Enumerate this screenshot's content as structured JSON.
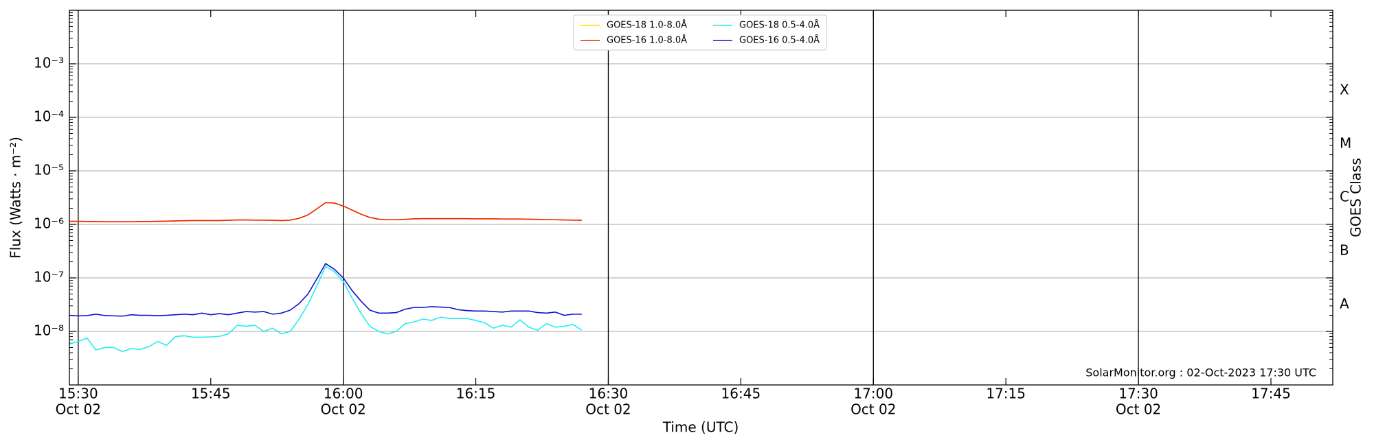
{
  "chart_data": {
    "type": "line",
    "y_label": "Flux (Watts · m⁻²)",
    "x_label": "Time (UTC)",
    "y2_label": "GOES Class",
    "annotation": "SolarMonitor.org : 02-Oct-2023 17:30 UTC",
    "log_y": true,
    "grid": true,
    "legend": "top-center",
    "ylim": [
      1e-09,
      0.01
    ],
    "yticks": [
      {
        "value": 1e-08,
        "label": "10⁻⁸"
      },
      {
        "value": 1e-07,
        "label": "10⁻⁷"
      },
      {
        "value": 1e-06,
        "label": "10⁻⁶"
      },
      {
        "value": 1e-05,
        "label": "10⁻⁵"
      },
      {
        "value": 0.0001,
        "label": "10⁻⁴"
      },
      {
        "value": 0.001,
        "label": "10⁻³"
      }
    ],
    "classes": {
      "labels": [
        "A",
        "B",
        "C",
        "M",
        "X"
      ],
      "lower": [
        1e-08,
        1e-07,
        1e-06,
        1e-05,
        0.0001
      ]
    },
    "xlim": [
      "15:29",
      "17:52"
    ],
    "xticks": [
      {
        "value": "15:30",
        "label": "15:30",
        "date": "Oct 02"
      },
      "15:45",
      {
        "value": "16:00",
        "label": "16:00",
        "date": "Oct 02"
      },
      "16:15",
      {
        "value": "16:30",
        "label": "16:30",
        "date": "Oct 02"
      },
      "16:45",
      {
        "value": "17:00",
        "label": "17:00",
        "date": "Oct 02"
      },
      "17:15",
      {
        "value": "17:30",
        "label": "17:30",
        "date": "Oct 02"
      },
      "17:45"
    ],
    "x": [
      "15:29",
      "15:30",
      "15:31",
      "15:32",
      "15:33",
      "15:34",
      "15:35",
      "15:36",
      "15:37",
      "15:38",
      "15:39",
      "15:40",
      "15:41",
      "15:42",
      "15:43",
      "15:44",
      "15:45",
      "15:46",
      "15:47",
      "15:48",
      "15:49",
      "15:50",
      "15:51",
      "15:52",
      "15:53",
      "15:54",
      "15:55",
      "15:56",
      "15:57",
      "15:58",
      "15:59",
      "16:00",
      "16:01",
      "16:02",
      "16:03",
      "16:04",
      "16:05",
      "16:06",
      "16:07",
      "16:08",
      "16:09",
      "16:10",
      "16:11",
      "16:12",
      "16:13",
      "16:14",
      "16:15",
      "16:16",
      "16:17",
      "16:18",
      "16:19",
      "16:20",
      "16:21",
      "16:22",
      "16:23",
      "16:24",
      "16:25",
      "16:26",
      "16:27"
    ],
    "series": [
      {
        "name": "GOES-18 1.0-8.0Å",
        "color": "#ffd700",
        "values": [
          1.14e-06,
          1.14e-06,
          1.13e-06,
          1.13e-06,
          1.12e-06,
          1.12e-06,
          1.12e-06,
          1.12e-06,
          1.13e-06,
          1.13e-06,
          1.14e-06,
          1.15e-06,
          1.16e-06,
          1.17e-06,
          1.18e-06,
          1.18e-06,
          1.18e-06,
          1.18e-06,
          1.19e-06,
          1.21e-06,
          1.21e-06,
          1.2e-06,
          1.2e-06,
          1.19e-06,
          1.18e-06,
          1.2e-06,
          1.3e-06,
          1.5e-06,
          1.95e-06,
          2.55e-06,
          2.5e-06,
          2.2e-06,
          1.85e-06,
          1.55e-06,
          1.35e-06,
          1.25e-06,
          1.22e-06,
          1.22e-06,
          1.24e-06,
          1.27e-06,
          1.28e-06,
          1.28e-06,
          1.28e-06,
          1.28e-06,
          1.28e-06,
          1.28e-06,
          1.27e-06,
          1.27e-06,
          1.27e-06,
          1.26e-06,
          1.26e-06,
          1.26e-06,
          1.25e-06,
          1.24e-06,
          1.23e-06,
          1.22e-06,
          1.21e-06,
          1.2e-06,
          1.19e-06
        ]
      },
      {
        "name": "GOES-16 1.0-8.0Å",
        "color": "#ee2200",
        "values": [
          1.14e-06,
          1.14e-06,
          1.13e-06,
          1.13e-06,
          1.12e-06,
          1.12e-06,
          1.12e-06,
          1.12e-06,
          1.13e-06,
          1.13e-06,
          1.14e-06,
          1.15e-06,
          1.16e-06,
          1.17e-06,
          1.18e-06,
          1.18e-06,
          1.18e-06,
          1.18e-06,
          1.19e-06,
          1.21e-06,
          1.21e-06,
          1.2e-06,
          1.2e-06,
          1.19e-06,
          1.18e-06,
          1.2e-06,
          1.3e-06,
          1.5e-06,
          1.95e-06,
          2.55e-06,
          2.5e-06,
          2.2e-06,
          1.85e-06,
          1.55e-06,
          1.35e-06,
          1.25e-06,
          1.22e-06,
          1.22e-06,
          1.24e-06,
          1.27e-06,
          1.28e-06,
          1.28e-06,
          1.28e-06,
          1.28e-06,
          1.28e-06,
          1.28e-06,
          1.27e-06,
          1.27e-06,
          1.27e-06,
          1.26e-06,
          1.26e-06,
          1.26e-06,
          1.25e-06,
          1.24e-06,
          1.23e-06,
          1.22e-06,
          1.21e-06,
          1.2e-06,
          1.19e-06
        ]
      },
      {
        "name": "GOES-18 0.5-4.0Å",
        "color": "#22eeee",
        "values": [
          5.8e-09,
          6.5e-09,
          7.5e-09,
          4.5e-09,
          5e-09,
          5e-09,
          4.2e-09,
          4.8e-09,
          4.6e-09,
          5.2e-09,
          6.5e-09,
          5.5e-09,
          8e-09,
          8.3e-09,
          7.8e-09,
          7.8e-09,
          7.9e-09,
          8.1e-09,
          9e-09,
          1.3e-08,
          1.25e-08,
          1.3e-08,
          1e-08,
          1.15e-08,
          9e-09,
          1e-08,
          1.7e-08,
          3.2e-08,
          7e-08,
          1.65e-07,
          1.3e-07,
          8.5e-08,
          4.2e-08,
          2.2e-08,
          1.25e-08,
          1e-08,
          9e-09,
          1e-08,
          1.4e-08,
          1.5e-08,
          1.7e-08,
          1.6e-08,
          1.85e-08,
          1.75e-08,
          1.75e-08,
          1.75e-08,
          1.6e-08,
          1.45e-08,
          1.15e-08,
          1.3e-08,
          1.2e-08,
          1.65e-08,
          1.2e-08,
          1.05e-08,
          1.4e-08,
          1.2e-08,
          1.25e-08,
          1.35e-08,
          1.05e-08
        ]
      },
      {
        "name": "GOES-16 0.5-4.0Å",
        "color": "#1111cc",
        "values": [
          2e-08,
          1.95e-08,
          1.97e-08,
          2.1e-08,
          1.98e-08,
          1.95e-08,
          1.93e-08,
          2.05e-08,
          2e-08,
          2e-08,
          1.97e-08,
          2e-08,
          2.05e-08,
          2.1e-08,
          2.05e-08,
          2.2e-08,
          2.05e-08,
          2.15e-08,
          2.05e-08,
          2.2e-08,
          2.35e-08,
          2.3e-08,
          2.35e-08,
          2.1e-08,
          2.2e-08,
          2.5e-08,
          3.3e-08,
          5e-08,
          9.5e-08,
          1.85e-07,
          1.45e-07,
          1e-07,
          5.8e-08,
          3.7e-08,
          2.5e-08,
          2.2e-08,
          2.2e-08,
          2.25e-08,
          2.6e-08,
          2.8e-08,
          2.8e-08,
          2.9e-08,
          2.85e-08,
          2.8e-08,
          2.55e-08,
          2.45e-08,
          2.4e-08,
          2.4e-08,
          2.35e-08,
          2.3e-08,
          2.4e-08,
          2.4e-08,
          2.4e-08,
          2.25e-08,
          2.2e-08,
          2.3e-08,
          2e-08,
          2.1e-08,
          2.1e-08
        ]
      }
    ]
  }
}
